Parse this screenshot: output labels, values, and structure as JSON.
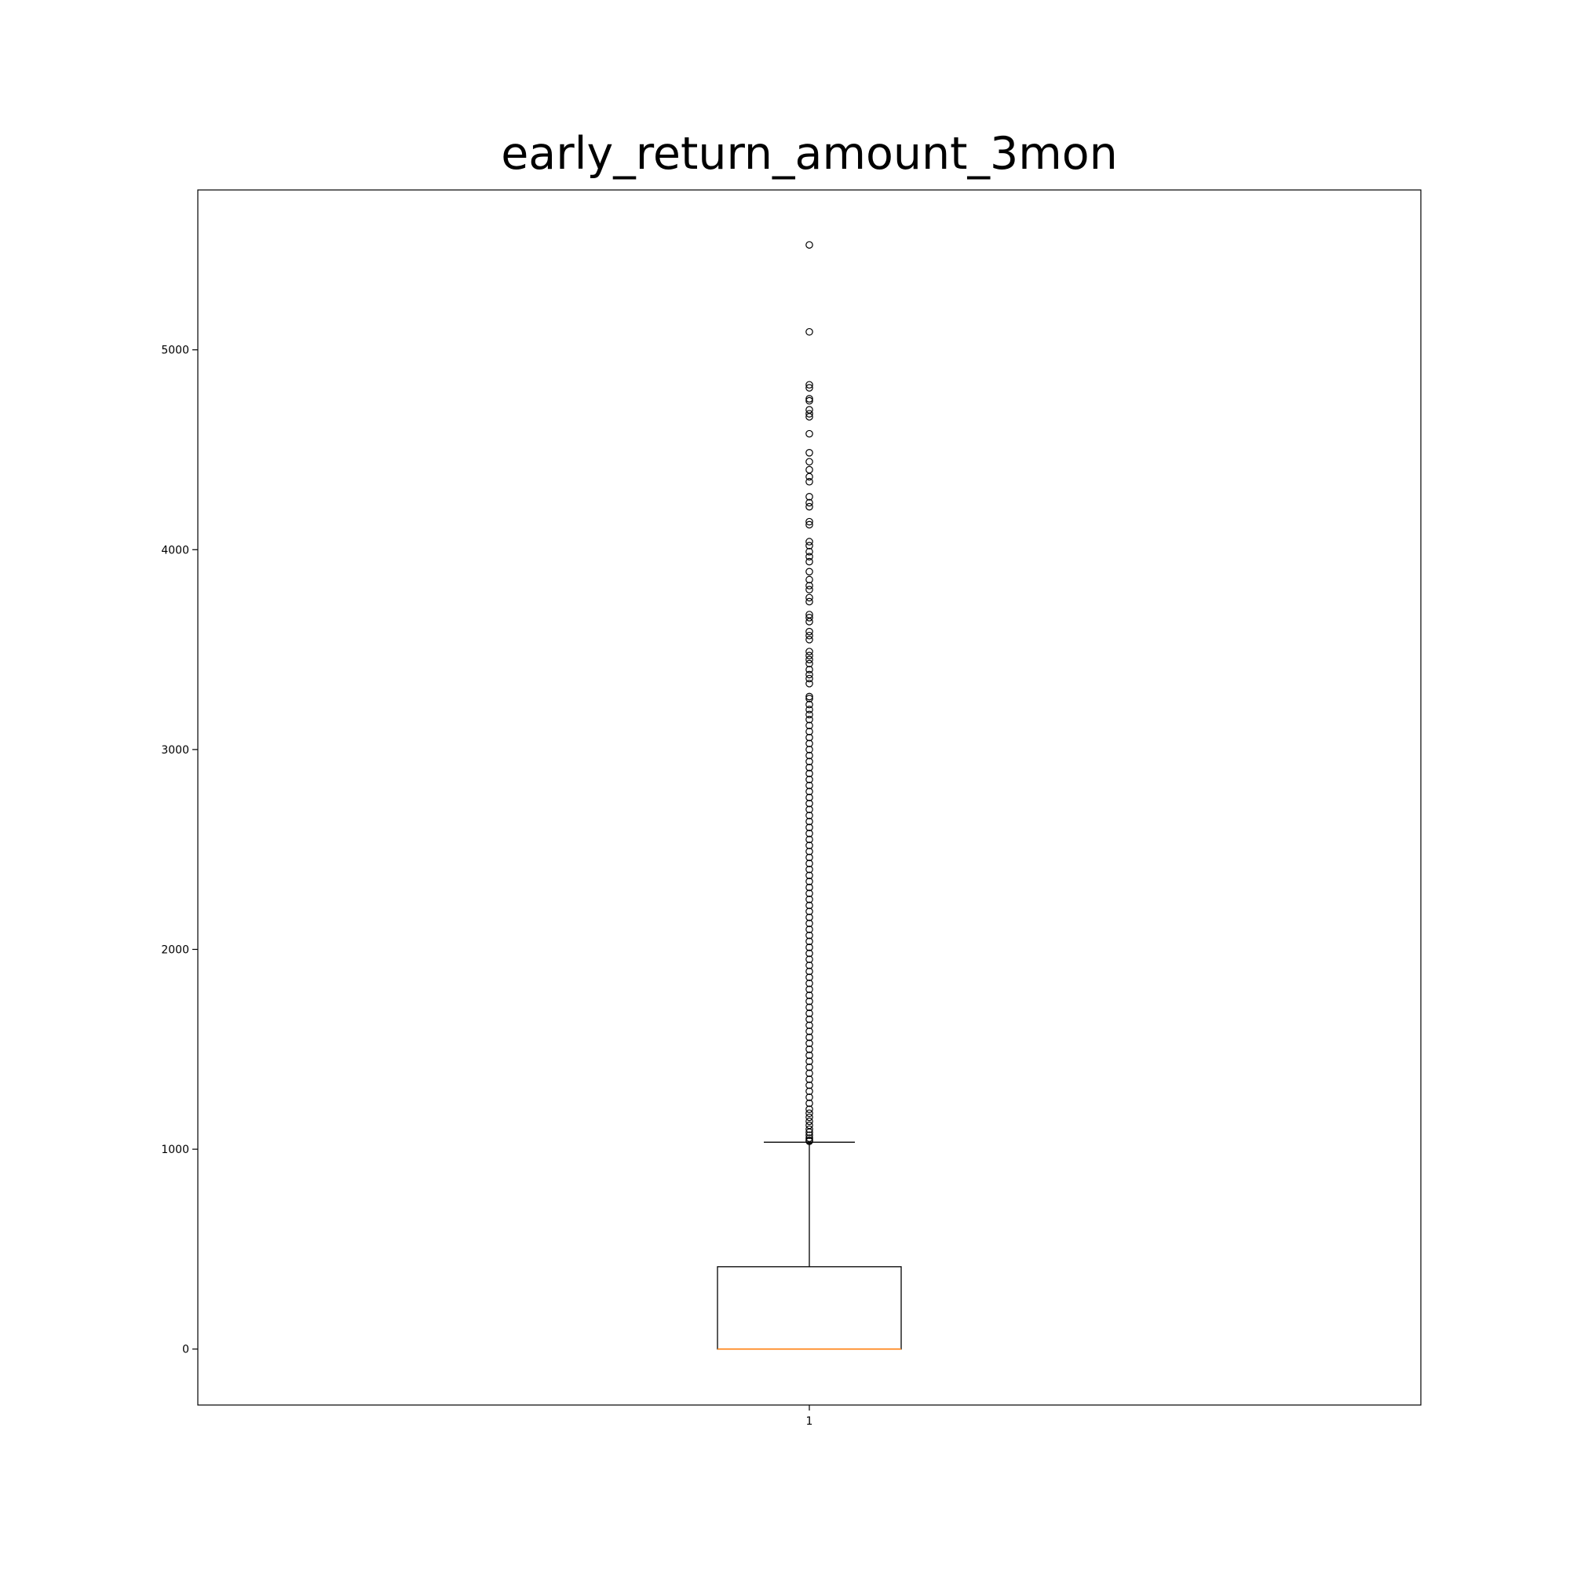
{
  "chart_data": {
    "type": "boxplot",
    "title": "early_return_amount_3mon",
    "xlabel": "",
    "ylabel": "",
    "categories": [
      "1"
    ],
    "ylim": [
      -280,
      5800
    ],
    "yticks": [
      0,
      1000,
      2000,
      3000,
      4000,
      5000
    ],
    "grid": false,
    "legend": "none",
    "box": {
      "q1": 0,
      "median": 0,
      "q3": 412,
      "whisker_low": 0,
      "whisker_high": 1035
    },
    "outliers": [
      5525,
      5090,
      4825,
      4810,
      4755,
      4745,
      4700,
      4680,
      4665,
      4580,
      4485,
      4440,
      4400,
      4365,
      4340,
      4265,
      4235,
      4215,
      4140,
      4125,
      4040,
      4020,
      3990,
      3965,
      3940,
      3890,
      3850,
      3820,
      3800,
      3760,
      3740,
      3675,
      3660,
      3640,
      3590,
      3570,
      3550,
      3490,
      3470,
      3450,
      3430,
      3400,
      3375,
      3355,
      3330,
      3265,
      3255,
      3225,
      3200,
      3175,
      3150,
      3120,
      3090,
      3060,
      3030,
      3000,
      2970,
      2940,
      2910,
      2880,
      2850,
      2820,
      2790,
      2760,
      2730,
      2700,
      2670,
      2640,
      2610,
      2580,
      2550,
      2520,
      2490,
      2460,
      2430,
      2400,
      2370,
      2340,
      2310,
      2280,
      2250,
      2220,
      2190,
      2160,
      2130,
      2100,
      2070,
      2040,
      2010,
      1980,
      1950,
      1920,
      1890,
      1860,
      1830,
      1800,
      1770,
      1740,
      1710,
      1680,
      1650,
      1620,
      1590,
      1560,
      1530,
      1500,
      1470,
      1440,
      1410,
      1380,
      1350,
      1320,
      1290,
      1260,
      1230,
      1200,
      1180,
      1160,
      1140,
      1120,
      1100,
      1085,
      1070,
      1055,
      1045,
      1040
    ],
    "colors": {
      "box": "#000000",
      "median": "#ff7f0e",
      "whisker": "#000000",
      "outlier": "#000000"
    }
  }
}
